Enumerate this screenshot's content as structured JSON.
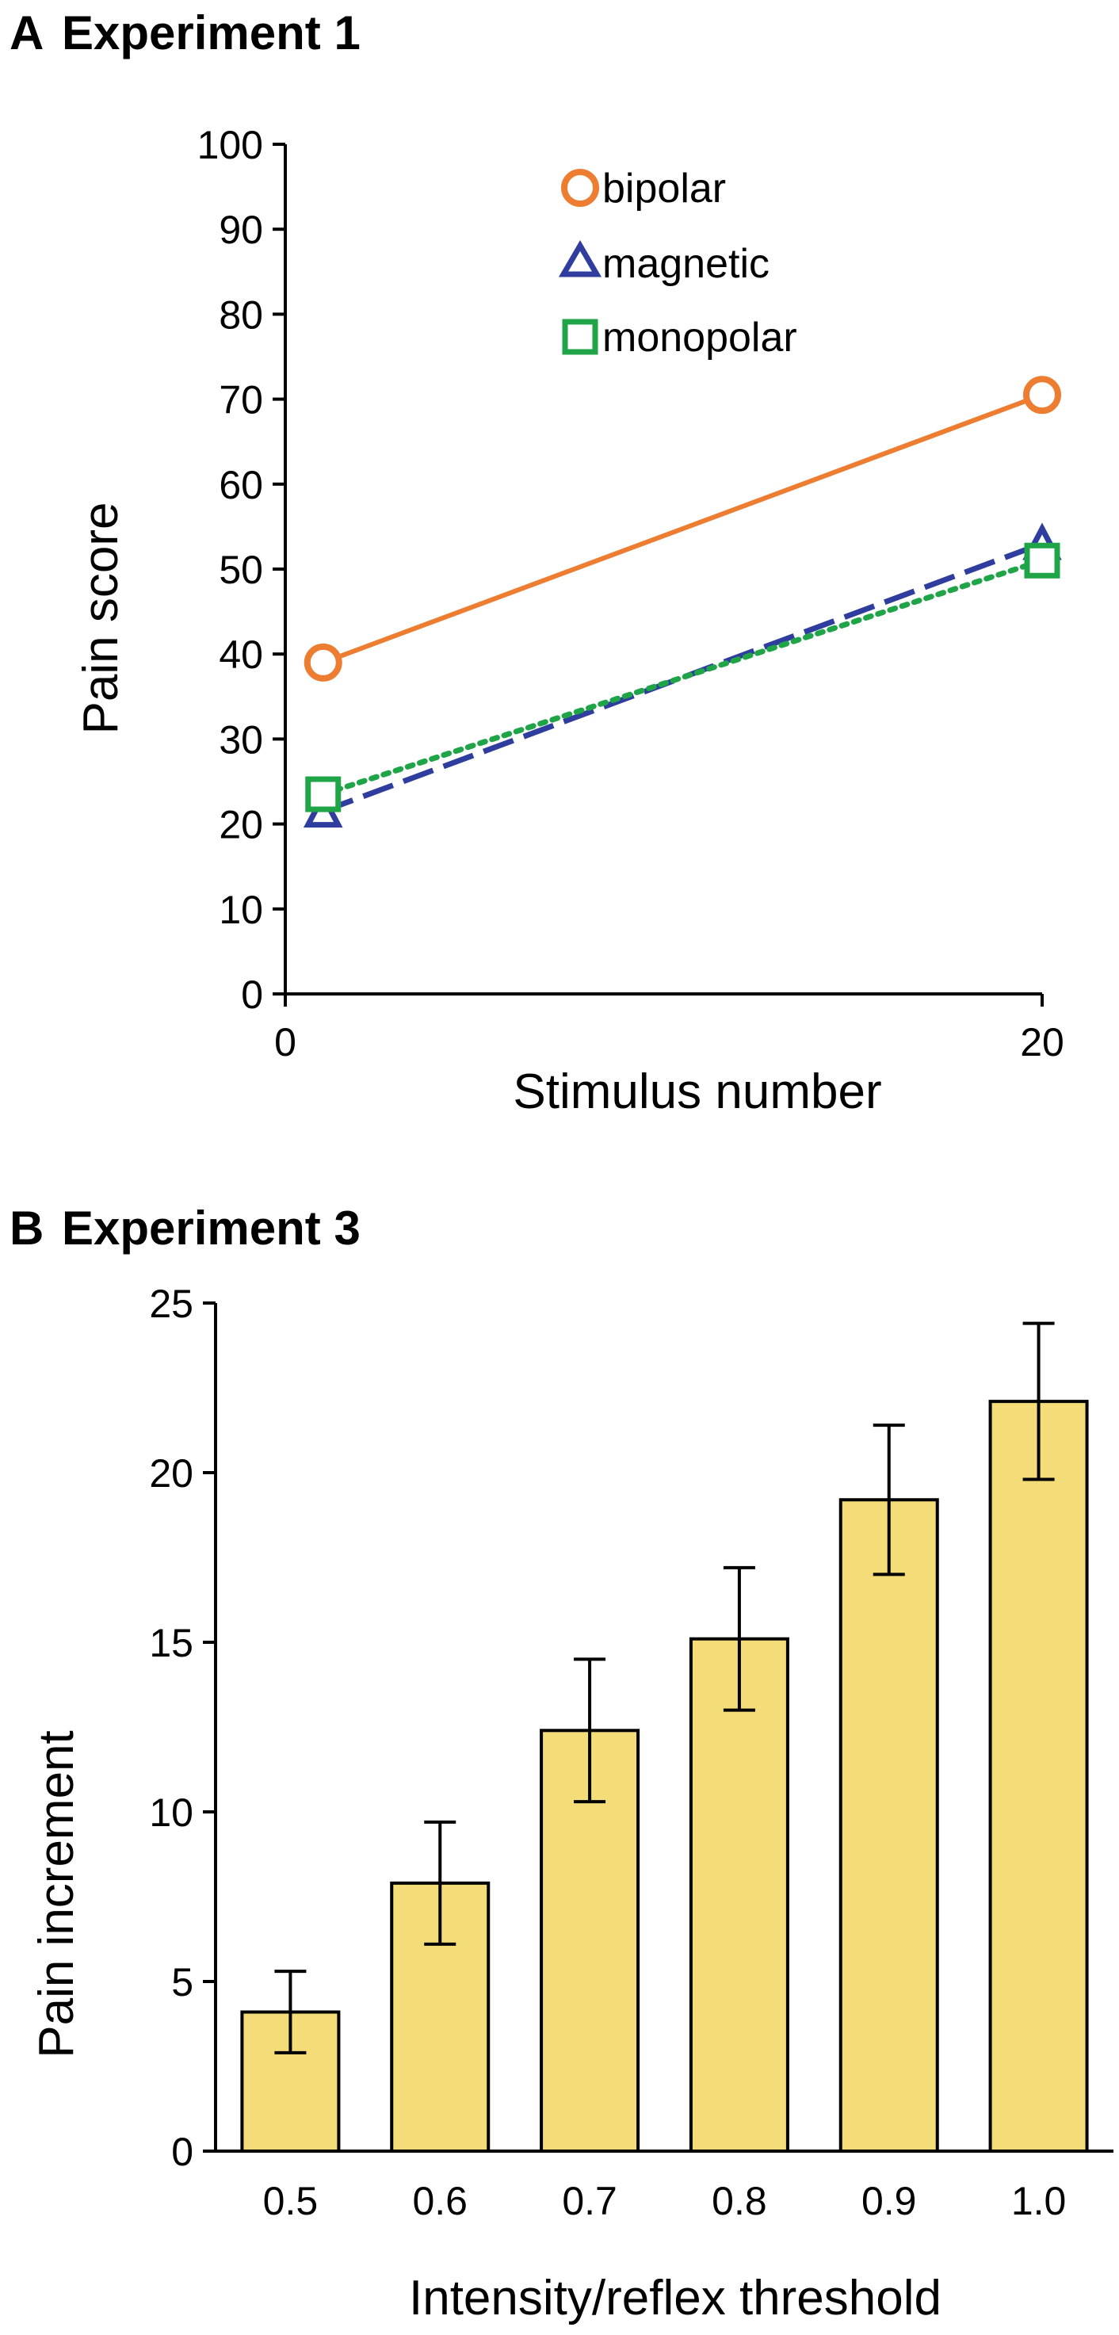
{
  "chart_data": [
    {
      "panel": "A",
      "type": "line",
      "title": "Experiment 1",
      "xlabel": "Stimulus number",
      "ylabel": "Pain score",
      "xlim": [
        0,
        20
      ],
      "ylim": [
        0,
        100
      ],
      "xticks": [
        0,
        20
      ],
      "xtick_labels": [
        "0",
        "20"
      ],
      "yticks": [
        0,
        10,
        20,
        30,
        40,
        50,
        60,
        70,
        80,
        90,
        100
      ],
      "ytick_labels": [
        "0",
        "10",
        "20",
        "30",
        "40",
        "50",
        "60",
        "70",
        "80",
        "90",
        "100"
      ],
      "legend_position": "top-left",
      "grid": false,
      "series": [
        {
          "name": "bipolar",
          "x": [
            1,
            20
          ],
          "values": [
            39,
            70.5
          ],
          "color": "#ED7D31",
          "marker": "circle",
          "line_style": "solid"
        },
        {
          "name": "magnetic",
          "x": [
            1,
            20
          ],
          "values": [
            21.5,
            53
          ],
          "color": "#2F3E9E",
          "marker": "triangle",
          "line_style": "dashed"
        },
        {
          "name": "monopolar",
          "x": [
            1,
            20
          ],
          "values": [
            23.5,
            51
          ],
          "color": "#1FA548",
          "marker": "square",
          "line_style": "dotted"
        }
      ]
    },
    {
      "panel": "B",
      "type": "bar",
      "title": "Experiment 3",
      "xlabel": "Intensity/reflex threshold",
      "ylabel": "Pain increment",
      "categories": [
        "0.5",
        "0.6",
        "0.7",
        "0.8",
        "0.9",
        "1.0"
      ],
      "values": [
        4.1,
        7.9,
        12.4,
        15.1,
        19.2,
        22.1
      ],
      "error": [
        1.2,
        1.8,
        2.1,
        2.1,
        2.2,
        2.3
      ],
      "ylim": [
        0,
        25
      ],
      "yticks": [
        0,
        5,
        10,
        15,
        20,
        25
      ],
      "ytick_labels": [
        "0",
        "5",
        "10",
        "15",
        "20",
        "25"
      ],
      "bar_color": "#F4DC78",
      "grid": false
    }
  ]
}
